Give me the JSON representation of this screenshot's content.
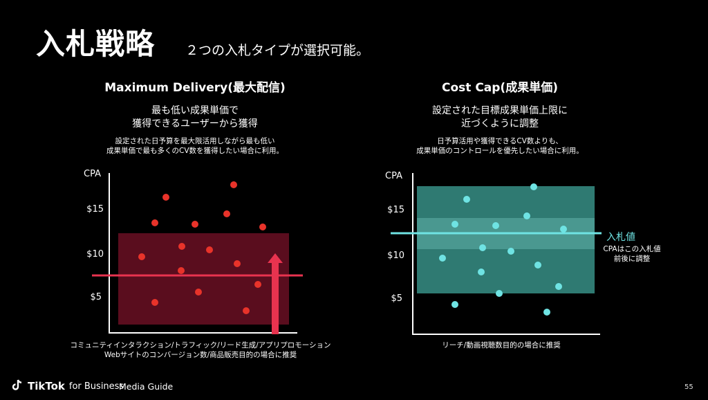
{
  "title": "入札戦略",
  "subtitle": "２つの入札タイプが選択可能。",
  "left": {
    "heading": "Maximum Delivery(最大配信)",
    "lead1": "最も低い成果単価で",
    "lead2": "獲得できるユーザーから獲得",
    "desc1": "設定された日予算を最大限活用しながら最も低い",
    "desc2": "成果単価で最も多くのCV数を獲得したい場合に利用。",
    "caption1": "コミュニティインタラクション/トラフィック/リード生成/アプリプロモーション",
    "caption2": "Webサイトのコンバージョン数/商品販売目的の場合に推奨"
  },
  "right": {
    "heading": "Cost Cap(成果単価)",
    "lead1": "設定された目標成果単価上限に",
    "lead2": "近づくように調整",
    "desc1": "日予算活用や獲得できるCV数よりも、",
    "desc2": "成果単価のコントロールを優先したい場合に利用。",
    "caption1": "リーチ/動画視聴数目的の場合に推奨",
    "bid_label": "入札値",
    "bid_note1": "CPAはこの入札値",
    "bid_note2": "前後に調整"
  },
  "axis": {
    "cpa": "CPA",
    "t15": "$15",
    "t10": "$10",
    "t5": "$5"
  },
  "footer": {
    "brand": "TikTok",
    "brand_sub": "for Business",
    "guide": "Media Guide",
    "page": "55"
  },
  "colors": {
    "left_dot": "#e8332a",
    "right_dot": "#6fe3e3",
    "left_box": "#5a0d1e",
    "right_box": "#2f7a72",
    "arrow": "#e8334f",
    "line_left": "#e8334f",
    "line_right": "#6fe3e3"
  }
}
